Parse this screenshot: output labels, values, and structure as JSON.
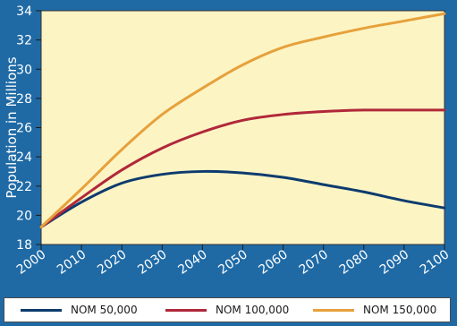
{
  "chart_data": {
    "type": "line",
    "ylabel": "Population in Millions",
    "xlabel": "",
    "ylim": [
      18,
      34
    ],
    "xlim": [
      2000,
      2100
    ],
    "yticks": [
      "18",
      "20",
      "22",
      "24",
      "26",
      "28",
      "30",
      "32",
      "34"
    ],
    "xticks": [
      "2000",
      "2010",
      "2020",
      "2030",
      "2040",
      "2050",
      "2060",
      "2070",
      "2080",
      "2090",
      "2100"
    ],
    "x": [
      2000,
      2010,
      2020,
      2030,
      2040,
      2050,
      2060,
      2070,
      2080,
      2090,
      2100
    ],
    "series": [
      {
        "name": "NOM 50,000",
        "color": "#0d3b6e",
        "values": [
          19.2,
          20.9,
          22.2,
          22.8,
          23.0,
          22.9,
          22.6,
          22.1,
          21.6,
          21.0,
          20.5
        ]
      },
      {
        "name": "NOM 100,000",
        "color": "#b0283a",
        "values": [
          19.2,
          21.2,
          23.1,
          24.6,
          25.7,
          26.5,
          26.9,
          27.1,
          27.2,
          27.2,
          27.2
        ]
      },
      {
        "name": "NOM 150,000",
        "color": "#e6a13c",
        "values": [
          19.2,
          21.8,
          24.5,
          26.9,
          28.7,
          30.3,
          31.5,
          32.2,
          32.8,
          33.3,
          33.8
        ]
      }
    ],
    "grid": false,
    "plot_background": "#fdf4c4",
    "legend_position": "bottom"
  }
}
